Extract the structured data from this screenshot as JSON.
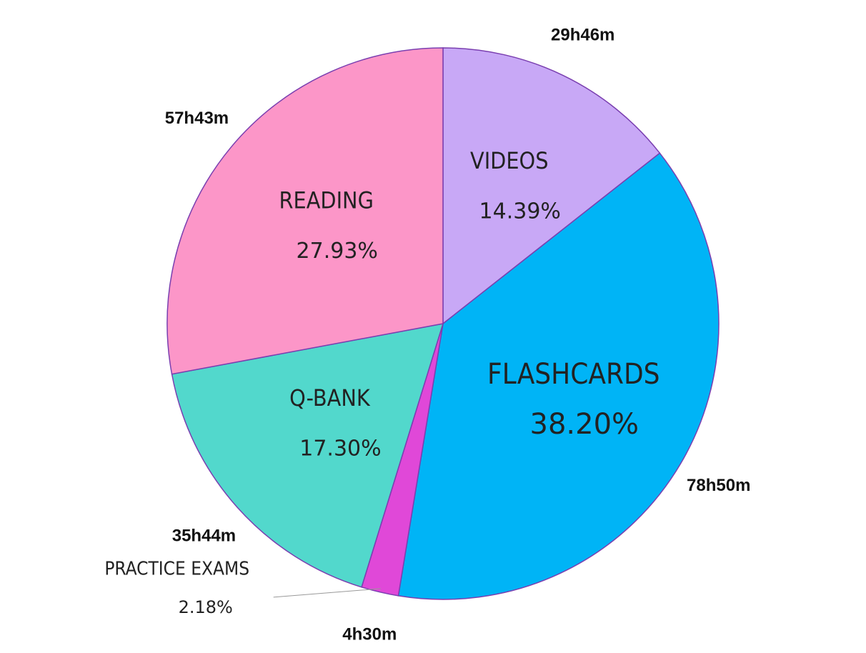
{
  "chart_data": {
    "type": "pie",
    "categories": [
      "VIDEOS",
      "FLASHCARDS",
      "PRACTICE EXAMS",
      "Q-BANK",
      "READING"
    ],
    "values": [
      14.39,
      38.2,
      2.18,
      17.3,
      27.93
    ],
    "value_labels": [
      "14.39%",
      "38.20%",
      "2.18%",
      "17.30%",
      "27.93%"
    ],
    "durations": [
      "29h46m",
      "78h50m",
      "4h30m",
      "35h44m",
      "57h43m"
    ],
    "colors": [
      "#c8a8f6",
      "#00b4f6",
      "#e048d8",
      "#52d8cc",
      "#fc96c8"
    ]
  }
}
